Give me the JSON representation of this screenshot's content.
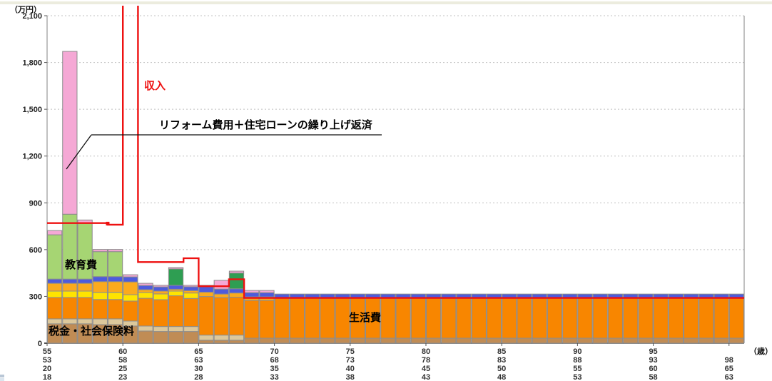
{
  "meta": {
    "unit_y": "（万円）",
    "unit_x": "（歳）"
  },
  "labels": {
    "income": "収入",
    "education": "教育費",
    "living": "生活費",
    "tax": "税金・社会保険料",
    "annotation": "リフォーム費用＋住宅ローンの繰り上げ返済"
  },
  "colors": {
    "income_line": "#ee1111",
    "grid": "#c0c0c0",
    "plot_border": "#808080",
    "axis_zero": "#1a1a1a",
    "bar_border": "#8c8c8c",
    "page_top_strip": "#ececde",
    "annotation_line": "#111111"
  },
  "chart_data": {
    "type": "bar",
    "stacked": true,
    "title": "",
    "xlabel": "（歳）",
    "ylabel": "（万円）",
    "ylim": [
      0,
      2100
    ],
    "grid": "dashed-horizontal",
    "legend": "none (labels drawn on chart areas)",
    "y_ticks": [
      "0",
      "300",
      "600",
      "900",
      "1,200",
      "1,500",
      "1,800",
      "2,100"
    ],
    "age_start": 55,
    "age_end": 100,
    "x_tick_rows": [
      [
        "55",
        "60",
        "65",
        "70",
        "75",
        "80",
        "85",
        "90",
        "95",
        ""
      ],
      [
        "53",
        "58",
        "63",
        "68",
        "73",
        "78",
        "83",
        "88",
        "93",
        "98"
      ],
      [
        "20",
        "25",
        "30",
        "35",
        "40",
        "45",
        "50",
        "55",
        "60",
        "65"
      ],
      [
        "18",
        "23",
        "28",
        "33",
        "38",
        "43",
        "48",
        "53",
        "58",
        "63"
      ]
    ],
    "x_tick_step_years": 5,
    "series": [
      {
        "id": "tax-lower",
        "label": "税金・社会保険料",
        "color": "#c08c55",
        "values": [
          124,
          124,
          124,
          119,
          119,
          110,
          78,
          75,
          75,
          75,
          19,
          19,
          19,
          32,
          32,
          32,
          32,
          32,
          32,
          32,
          32,
          32,
          32,
          32,
          32,
          32,
          32,
          32,
          32,
          32,
          32,
          32,
          32,
          32,
          32,
          32,
          32,
          32,
          32,
          32,
          32,
          32,
          32,
          32,
          32,
          32
        ]
      },
      {
        "id": "tax-upper",
        "label": "",
        "color": "#dcc89c",
        "values": [
          32,
          32,
          32,
          37,
          37,
          32,
          32,
          32,
          32,
          32,
          33,
          33,
          33,
          0,
          0,
          0,
          0,
          0,
          0,
          0,
          0,
          0,
          0,
          0,
          0,
          0,
          0,
          0,
          0,
          0,
          0,
          0,
          0,
          0,
          0,
          0,
          0,
          0,
          0,
          0,
          0,
          0,
          0,
          0,
          0,
          0
        ]
      },
      {
        "id": "living",
        "label": "生活費",
        "color": "#f88600",
        "values": [
          137,
          137,
          137,
          124,
          124,
          128,
          178,
          172,
          197,
          180,
          247,
          240,
          243,
          242,
          242,
          256,
          256,
          256,
          256,
          256,
          256,
          256,
          256,
          256,
          256,
          256,
          256,
          256,
          256,
          256,
          256,
          256,
          256,
          256,
          256,
          256,
          256,
          256,
          256,
          256,
          256,
          256,
          256,
          256,
          256,
          256
        ]
      },
      {
        "id": "band-yellow",
        "label": "",
        "color": "#ffe400",
        "values": [
          41,
          41,
          41,
          46,
          46,
          41,
          37,
          37,
          30,
          35,
          0,
          0,
          0,
          0,
          0,
          0,
          0,
          0,
          0,
          0,
          0,
          0,
          0,
          0,
          0,
          0,
          0,
          0,
          0,
          0,
          0,
          0,
          0,
          0,
          0,
          0,
          0,
          0,
          0,
          0,
          0,
          0,
          0,
          0,
          0,
          0
        ]
      },
      {
        "id": "band-amber",
        "label": "",
        "color": "#fbaa1d",
        "values": [
          50,
          50,
          50,
          69,
          69,
          82,
          18,
          18,
          12,
          15,
          28,
          23,
          27,
          23,
          23,
          0,
          0,
          0,
          0,
          0,
          0,
          0,
          0,
          0,
          0,
          0,
          0,
          0,
          0,
          0,
          0,
          0,
          0,
          0,
          0,
          0,
          0,
          0,
          0,
          0,
          0,
          0,
          0,
          0,
          0,
          0
        ]
      },
      {
        "id": "band-blue",
        "label": "",
        "color": "#4e5bdc",
        "values": [
          27,
          27,
          27,
          32,
          32,
          32,
          27,
          27,
          25,
          25,
          35,
          32,
          27,
          27,
          27,
          27,
          27,
          27,
          27,
          27,
          27,
          27,
          27,
          27,
          27,
          27,
          27,
          27,
          27,
          27,
          27,
          27,
          27,
          27,
          27,
          27,
          27,
          27,
          27,
          27,
          27,
          27,
          27,
          27,
          27,
          27
        ]
      },
      {
        "id": "education",
        "label": "教育費",
        "color": "#a6d573",
        "values": [
          284,
          416,
          361,
          160,
          160,
          0,
          0,
          0,
          0,
          0,
          0,
          0,
          0,
          0,
          0,
          0,
          0,
          0,
          0,
          0,
          0,
          0,
          0,
          0,
          0,
          0,
          0,
          0,
          0,
          0,
          0,
          0,
          0,
          0,
          0,
          0,
          0,
          0,
          0,
          0,
          0,
          0,
          0,
          0,
          0,
          0
        ]
      },
      {
        "id": "event-green",
        "label": "",
        "color": "#2e9e52",
        "values": [
          0,
          0,
          0,
          0,
          0,
          0,
          0,
          0,
          105,
          0,
          0,
          0,
          101,
          0,
          0,
          0,
          0,
          0,
          0,
          0,
          0,
          0,
          0,
          0,
          0,
          0,
          0,
          0,
          0,
          0,
          0,
          0,
          0,
          0,
          0,
          0,
          0,
          0,
          0,
          0,
          0,
          0,
          0,
          0,
          0,
          0
        ]
      },
      {
        "id": "reform-pink",
        "label": "リフォーム費用＋住宅ローンの繰り上げ返済",
        "color": "#f5a8d5",
        "values": [
          27,
          1044,
          18,
          14,
          14,
          14,
          14,
          10,
          9,
          9,
          9,
          56,
          12,
          14,
          14,
          0,
          0,
          0,
          0,
          0,
          0,
          0,
          0,
          0,
          0,
          0,
          0,
          0,
          0,
          0,
          0,
          0,
          0,
          0,
          0,
          0,
          0,
          0,
          0,
          0,
          0,
          0,
          0,
          0,
          0,
          0
        ]
      }
    ],
    "income_line": {
      "label": "収入",
      "color": "#ee1111",
      "clipped_above_top_at_age": 60,
      "values": [
        770,
        770,
        770,
        770,
        760,
        2300,
        520,
        520,
        520,
        545,
        365,
        365,
        410,
        290,
        290,
        290,
        290,
        290,
        290,
        290,
        290,
        290,
        290,
        290,
        290,
        290,
        290,
        290,
        290,
        290,
        290,
        290,
        290,
        290,
        290,
        290,
        290,
        290,
        290,
        290,
        290,
        290,
        290,
        290,
        290,
        290
      ]
    }
  }
}
